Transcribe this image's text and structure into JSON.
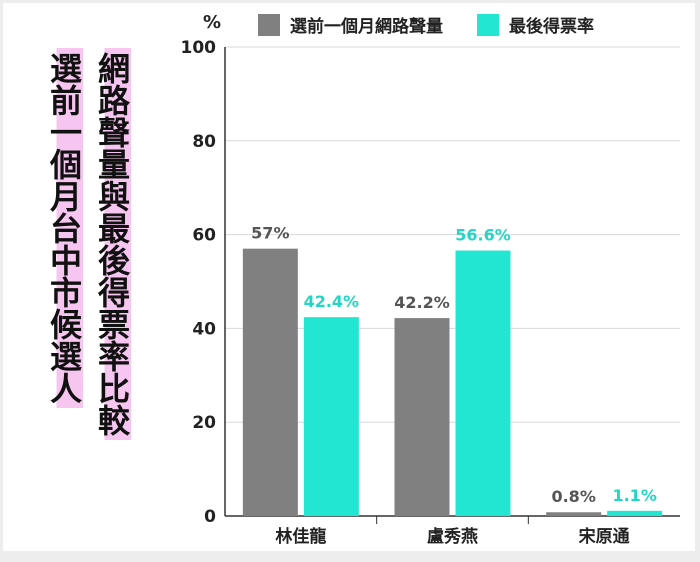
{
  "title": {
    "line1": "選前一個月台中市候選人",
    "line2": "網路聲量與最後得票率比較"
  },
  "colors": {
    "series_a": "#808080",
    "series_b": "#22e6d2",
    "label_a": "#555555",
    "label_b": "#22d6c6",
    "highlight": "#f6c6f0"
  },
  "chart_data": {
    "type": "bar",
    "unit_label": "%",
    "categories": [
      "林佳龍",
      "盧秀燕",
      "宋原通"
    ],
    "series": [
      {
        "name": "選前一個月網路聲量",
        "values": [
          57,
          42.2,
          0.8
        ],
        "labels": [
          "57%",
          "42.2%",
          "0.8%"
        ]
      },
      {
        "name": "最後得票率",
        "values": [
          42.4,
          56.6,
          1.1
        ],
        "labels": [
          "42.4%",
          "56.6%",
          "1.1%"
        ]
      }
    ],
    "ylim": [
      0,
      100
    ],
    "yticks": [
      0,
      20,
      40,
      60,
      80,
      100
    ],
    "grid": true,
    "legend": "top"
  }
}
